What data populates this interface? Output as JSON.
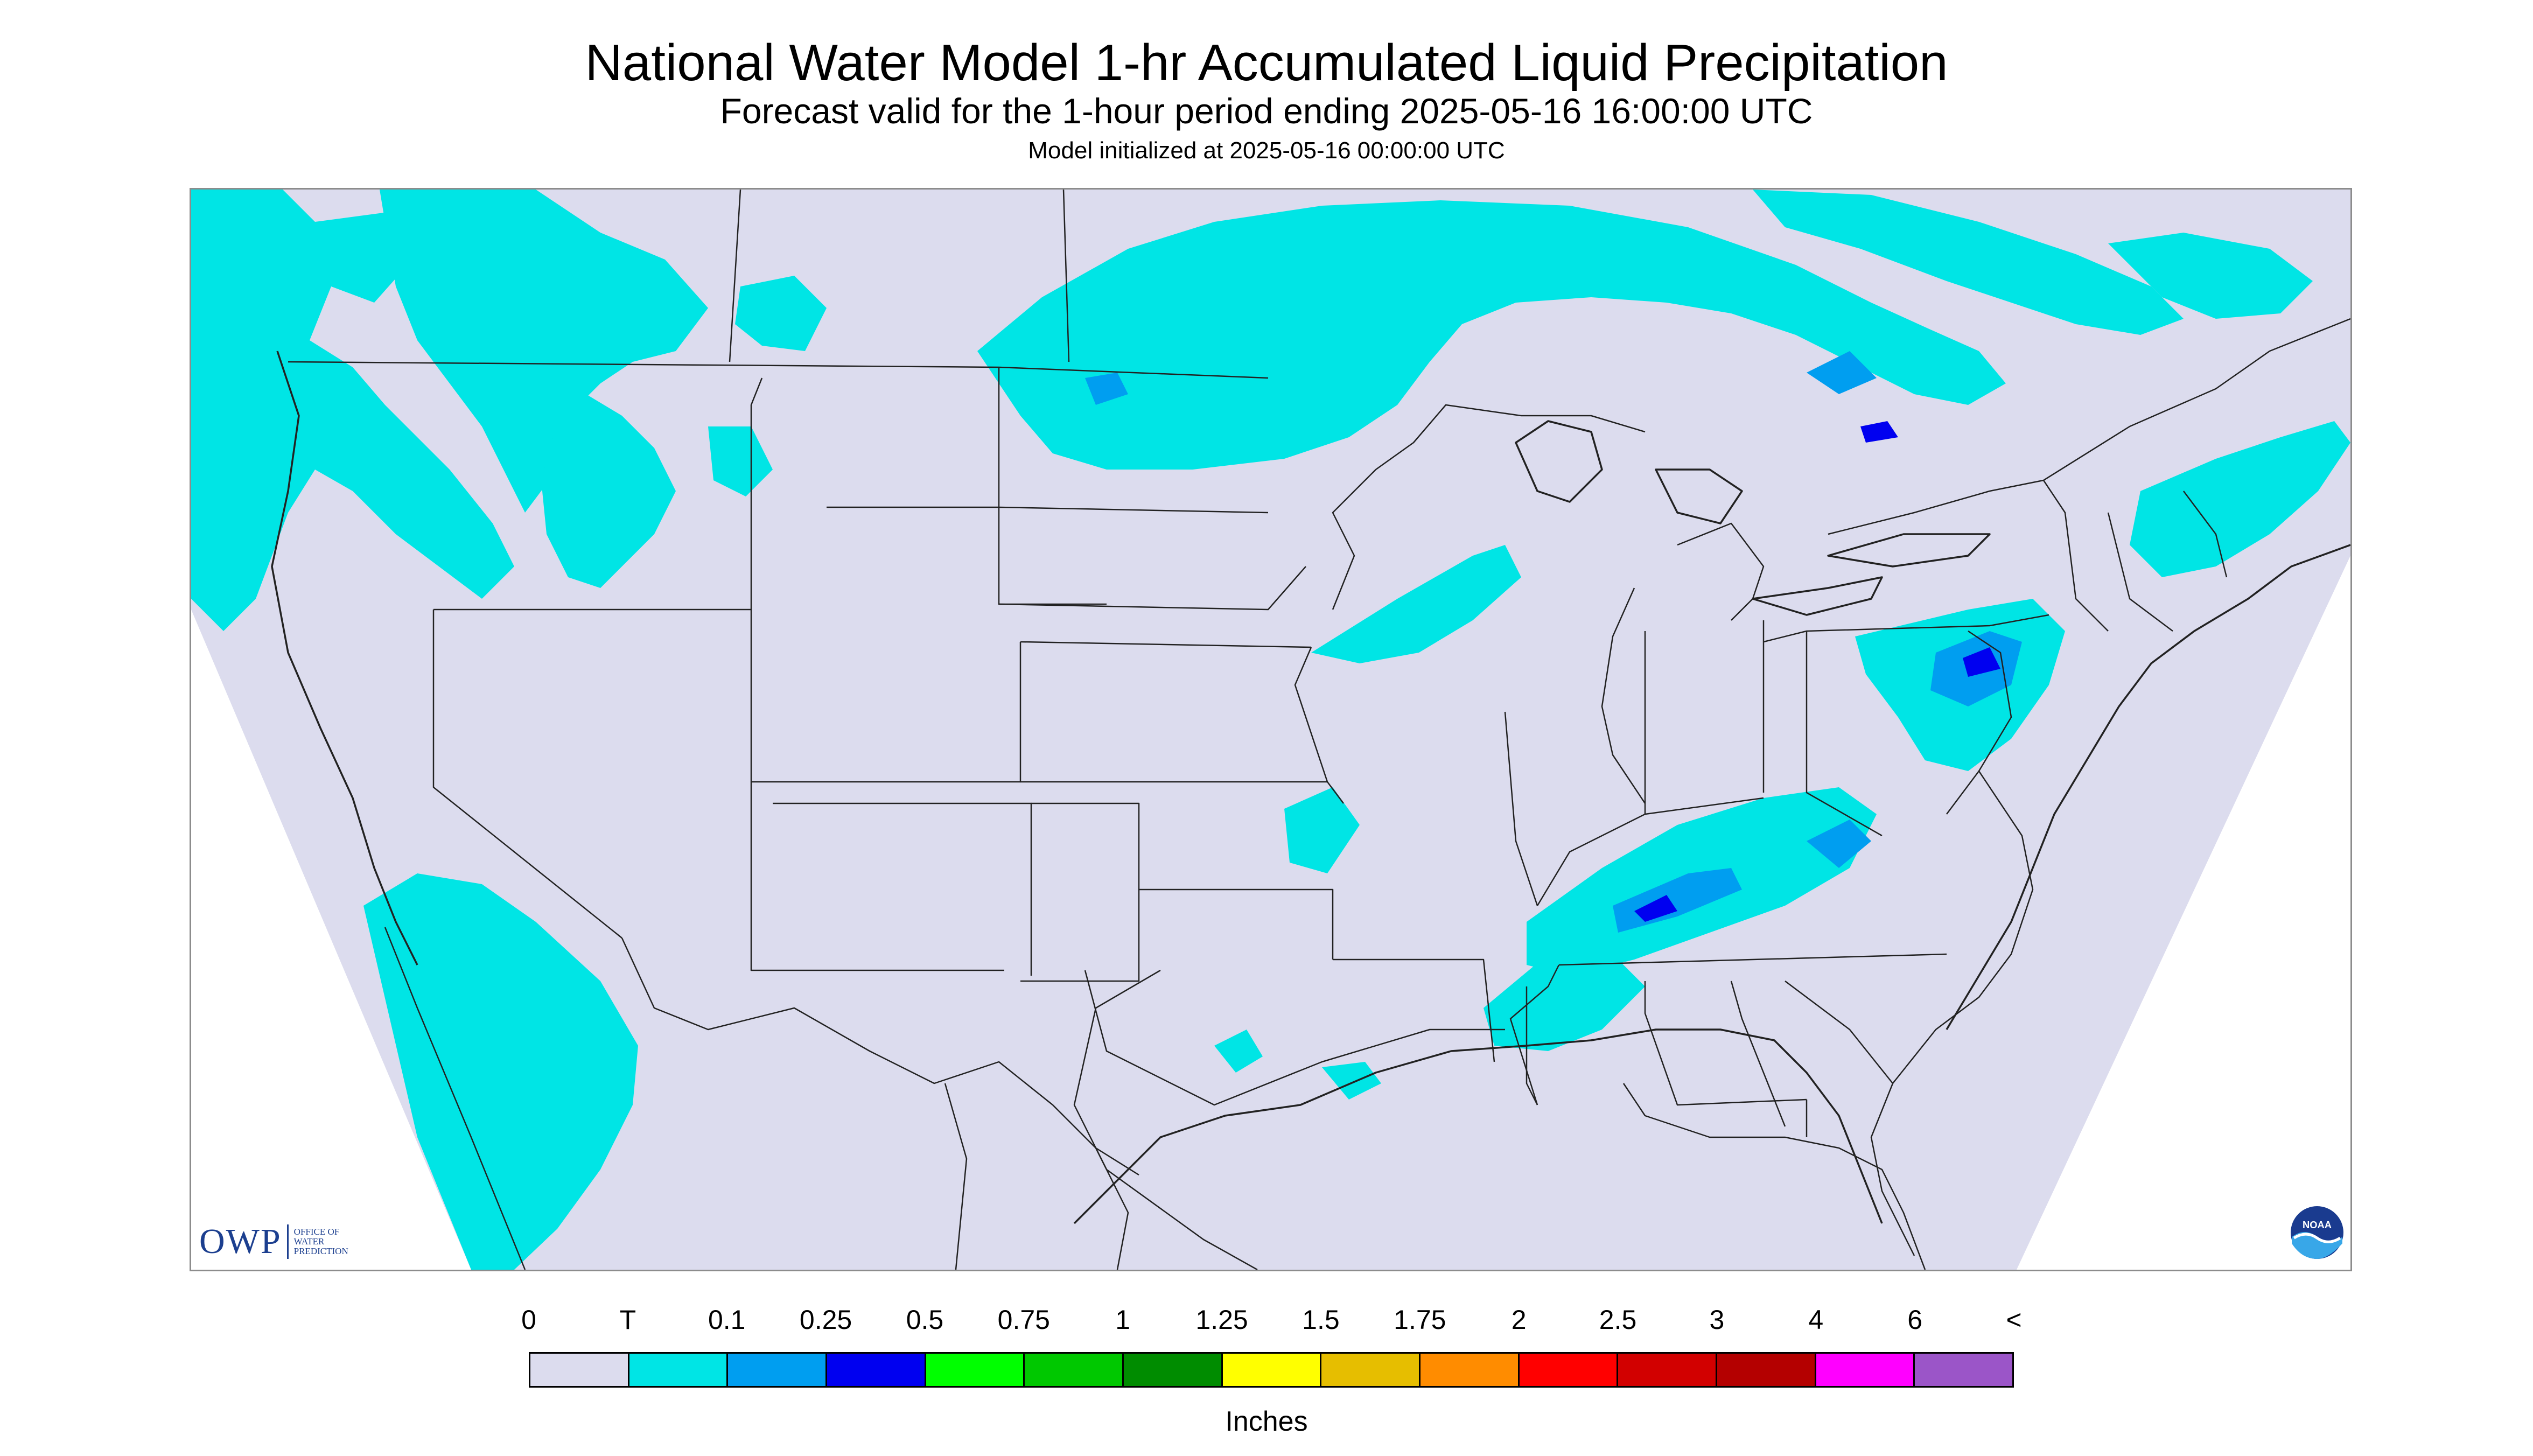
{
  "header": {
    "title": "National Water Model 1-hr Accumulated Liquid Precipitation",
    "subtitle": "Forecast valid for the 1-hour period ending 2025-05-16 16:00:00 UTC",
    "init_line": "Model initialized at 2025-05-16 00:00:00 UTC"
  },
  "logos": {
    "owp_mark": "OWP",
    "owp_lines": [
      "OFFICE OF",
      "WATER",
      "PREDICTION"
    ],
    "noaa_text": "NOAA"
  },
  "legend": {
    "labels": [
      "0",
      "T",
      "0.1",
      "0.25",
      "0.5",
      "0.75",
      "1",
      "1.25",
      "1.5",
      "1.75",
      "2",
      "2.5",
      "3",
      "4",
      "6",
      "<"
    ],
    "colors": [
      "#dcdcee",
      "#00e5e5",
      "#009ef0",
      "#0000f0",
      "#00ff00",
      "#00c800",
      "#008c00",
      "#ffff00",
      "#e6be00",
      "#ff8c00",
      "#ff0000",
      "#d20000",
      "#b40000",
      "#ff00ff",
      "#9b55c8"
    ],
    "units": "Inches"
  },
  "map": {
    "background_color": "#dcdcee",
    "trace_color": "#00e5e5",
    "light_color": "#009ef0",
    "moderate_color": "#0000f0",
    "boundary_color": "#222222"
  }
}
